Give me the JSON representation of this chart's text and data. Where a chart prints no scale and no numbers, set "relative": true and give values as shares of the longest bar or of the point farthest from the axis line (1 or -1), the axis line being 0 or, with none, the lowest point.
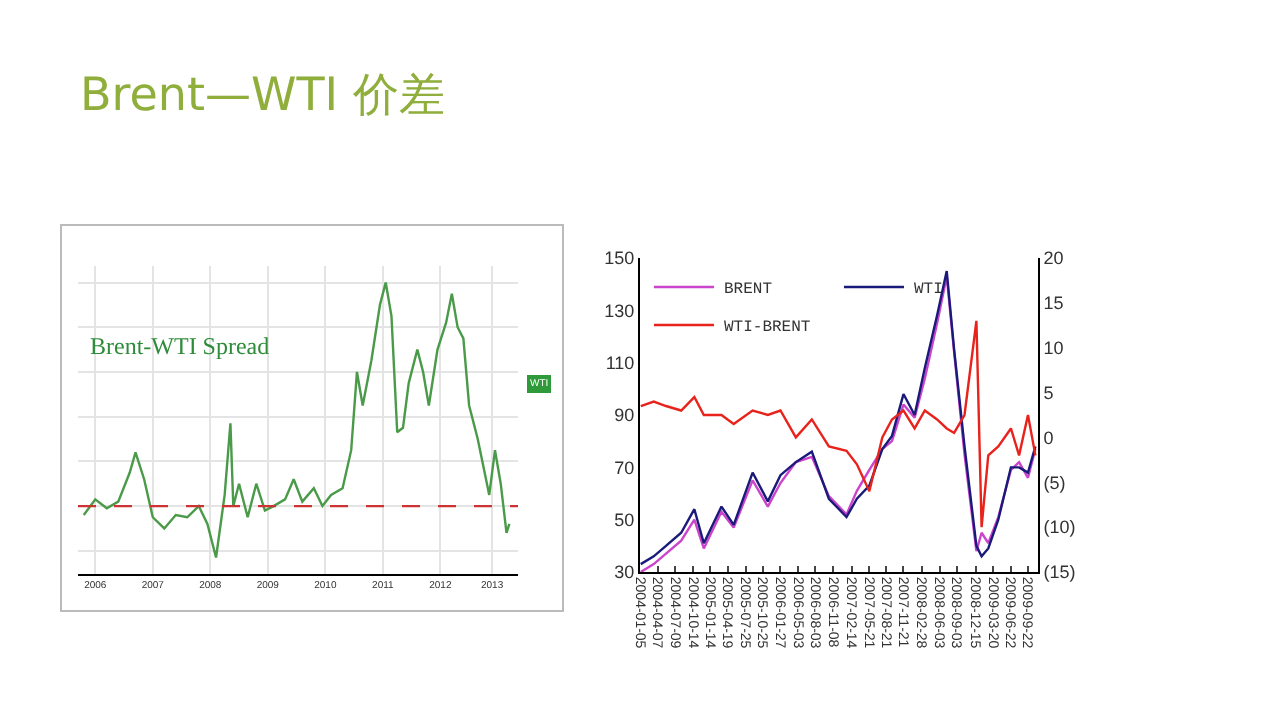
{
  "chart_data": [
    {
      "type": "line",
      "title": "Brent—WTI 价差",
      "relative": true,
      "grid": true,
      "legend": false,
      "tick_labels": "x",
      "annotations": [
        "Brent-WTI Spread",
        "WTI"
      ],
      "x": [
        2006.3,
        2006.5,
        2006.7,
        2006.9,
        2007.1,
        2007.2,
        2007.35,
        2007.5,
        2007.7,
        2007.9,
        2008.1,
        2008.3,
        2008.45,
        2008.6,
        2008.75,
        2008.85,
        2008.9,
        2009.0,
        2009.15,
        2009.3,
        2009.45,
        2009.6,
        2009.8,
        2009.95,
        2010.1,
        2010.3,
        2010.45,
        2010.6,
        2010.8,
        2010.95,
        2011.05,
        2011.15,
        2011.3,
        2011.45,
        2011.55,
        2011.65,
        2011.75,
        2011.85,
        2011.95,
        2012.1,
        2012.2,
        2012.3,
        2012.45,
        2012.6,
        2012.7,
        2012.8,
        2012.9,
        2013.0,
        2013.15,
        2013.35,
        2013.45,
        2013.55,
        2013.65,
        2013.7
      ],
      "xlim": [
        2006.2,
        2013.85
      ],
      "xticks": [
        {
          "value": 2006.5,
          "label": "2006"
        },
        {
          "value": 2007.5,
          "label": "2007"
        },
        {
          "value": 2008.5,
          "label": "2008"
        },
        {
          "value": 2009.5,
          "label": "2009"
        },
        {
          "value": 2010.5,
          "label": "2010"
        },
        {
          "value": 2011.5,
          "label": "2011"
        },
        {
          "value": 2012.5,
          "label": "2012"
        },
        {
          "value": 2013.4,
          "label": "2013"
        }
      ],
      "series": [
        {
          "color": "#4a9a4a",
          "values": [
            -0.04,
            0.03,
            -0.01,
            0.02,
            0.15,
            0.24,
            0.12,
            -0.05,
            -0.1,
            -0.04,
            -0.05,
            0.0,
            -0.08,
            -0.23,
            0.05,
            0.37,
            0.0,
            0.1,
            -0.05,
            0.1,
            -0.02,
            0.0,
            0.03,
            0.12,
            0.02,
            0.08,
            0.0,
            0.05,
            0.08,
            0.25,
            0.6,
            0.45,
            0.65,
            0.9,
            1.0,
            0.85,
            0.33,
            0.35,
            0.55,
            0.7,
            0.6,
            0.45,
            0.7,
            0.82,
            0.95,
            0.8,
            0.75,
            0.45,
            0.3,
            0.05,
            0.25,
            0.1,
            -0.12,
            -0.08
          ]
        }
      ],
      "ref_lines": [
        {
          "axis": "y",
          "value": 0,
          "color": "#cc3333",
          "line_style": "dashed"
        }
      ]
    },
    {
      "type": "line",
      "legend": "top left",
      "grid": false,
      "x": [
        "2004-01-05",
        "2004-03-15",
        "2004-05-20",
        "2004-08-10",
        "2004-10-20",
        "2004-12-10",
        "2005-03-15",
        "2005-05-20",
        "2005-08-30",
        "2005-11-20",
        "2006-01-27",
        "2006-04-20",
        "2006-07-15",
        "2006-10-15",
        "2007-01-18",
        "2007-03-15",
        "2007-05-21",
        "2007-07-30",
        "2007-09-20",
        "2007-11-21",
        "2008-01-20",
        "2008-03-15",
        "2008-05-20",
        "2008-07-11",
        "2008-08-20",
        "2008-10-15",
        "2008-12-18",
        "2009-01-15",
        "2009-02-20",
        "2009-04-15",
        "2009-06-22",
        "2009-08-05",
        "2009-09-22",
        "2009-11-01"
      ],
      "xlim": [
        "2004-01-01",
        "2009-11-15"
      ],
      "xticks": [
        {
          "value": "2004-01-05",
          "label": "2004-01-05"
        },
        {
          "value": "2004-04-07",
          "label": "2004-04-07"
        },
        {
          "value": "2004-07-09",
          "label": "2004-07-09"
        },
        {
          "value": "2004-10-14",
          "label": "2004-10-14"
        },
        {
          "value": "2005-01-14",
          "label": "2005-01-14"
        },
        {
          "value": "2005-04-19",
          "label": "2005-04-19"
        },
        {
          "value": "2005-07-25",
          "label": "2005-07-25"
        },
        {
          "value": "2005-10-25",
          "label": "2005-10-25"
        },
        {
          "value": "2006-01-27",
          "label": "2006-01-27"
        },
        {
          "value": "2006-05-03",
          "label": "2006-05-03"
        },
        {
          "value": "2006-08-03",
          "label": "2006-08-03"
        },
        {
          "value": "2006-11-08",
          "label": "2006-11-08"
        },
        {
          "value": "2007-02-14",
          "label": "2007-02-14"
        },
        {
          "value": "2007-05-21",
          "label": "2007-05-21"
        },
        {
          "value": "2007-08-21",
          "label": "2007-08-21"
        },
        {
          "value": "2007-11-21",
          "label": "2007-11-21"
        },
        {
          "value": "2008-02-28",
          "label": "2008-02-28"
        },
        {
          "value": "2008-06-03",
          "label": "2008-06-03"
        },
        {
          "value": "2008-09-03",
          "label": "2008-09-03"
        },
        {
          "value": "2008-12-15",
          "label": "2008-12-15"
        },
        {
          "value": "2009-03-20",
          "label": "2009-03-20"
        },
        {
          "value": "2009-06-22",
          "label": "2009-06-22"
        },
        {
          "value": "2009-09-22",
          "label": "2009-09-22"
        }
      ],
      "ylim": [
        30,
        150
      ],
      "yticks": [
        30,
        50,
        70,
        90,
        110,
        130,
        150
      ],
      "y2lim": [
        -15,
        20
      ],
      "y2ticks": [
        {
          "value": -15,
          "label": "(15)"
        },
        {
          "value": -10,
          "label": "(10)"
        },
        {
          "value": -5,
          "label": "(5)"
        },
        0,
        5,
        10,
        15,
        20
      ],
      "series": [
        {
          "name": "BRENT",
          "color": "#cc44cc",
          "values": [
            30,
            33,
            37,
            42,
            50,
            39,
            53,
            47,
            65,
            55,
            64,
            72,
            74,
            59,
            52,
            61,
            69,
            77,
            80,
            94,
            89,
            104,
            125,
            143,
            114,
            75,
            38,
            45,
            41,
            51,
            69,
            72,
            66,
            77
          ]
        },
        {
          "name": "WTI",
          "color": "#1a1a7a",
          "values": [
            33,
            36,
            40,
            45,
            54,
            41,
            55,
            48,
            68,
            57,
            67,
            72,
            76,
            58,
            51,
            58,
            63,
            77,
            82,
            98,
            90,
            108,
            128,
            145,
            115,
            78,
            40,
            36,
            39,
            50,
            70,
            70,
            68,
            78
          ]
        },
        {
          "name": "WTI-BRENT",
          "color": "#e8231c",
          "axis": "y2",
          "values": [
            3.5,
            4,
            3.5,
            3,
            4.5,
            2.5,
            2.5,
            1.5,
            3,
            2.5,
            3,
            0,
            2,
            -1,
            -1.5,
            -3,
            -6,
            0,
            2,
            3,
            1,
            3,
            2,
            1,
            0.5,
            2.5,
            13,
            -10,
            -2,
            -1,
            1,
            -2,
            2.5,
            -2
          ]
        }
      ]
    }
  ]
}
